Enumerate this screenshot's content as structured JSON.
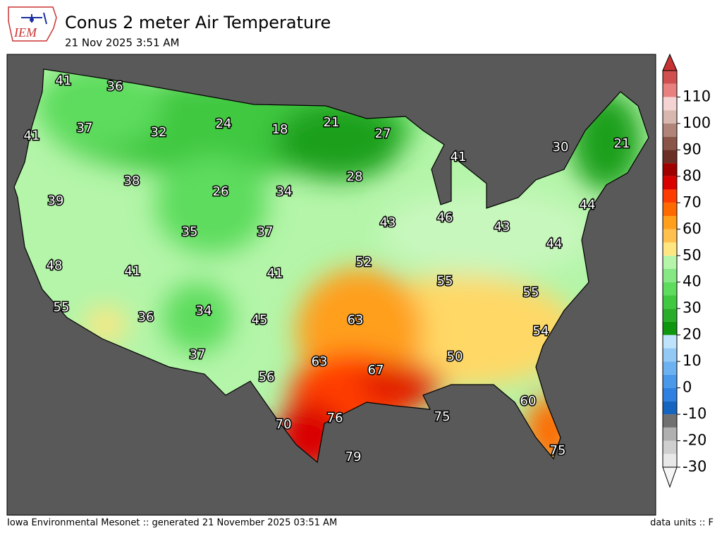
{
  "header": {
    "logo": "IEM",
    "title": "Conus 2 meter Air Temperature",
    "subtitle": "21 Nov 2025 3:51 AM"
  },
  "map": {
    "labels": [
      41,
      36,
      41,
      37,
      32,
      24,
      18,
      21,
      27,
      30,
      21,
      41,
      38,
      26,
      34,
      28,
      39,
      35,
      37,
      43,
      46,
      43,
      44,
      44,
      48,
      41,
      41,
      52,
      55,
      55,
      55,
      36,
      34,
      45,
      63,
      54,
      50,
      37,
      63,
      67,
      56,
      60,
      70,
      76,
      75,
      75,
      79
    ]
  },
  "colorbar": {
    "lim": [
      -30,
      120
    ],
    "ticks": [
      -30,
      -20,
      -10,
      0,
      10,
      20,
      30,
      40,
      50,
      60,
      70,
      80,
      90,
      100,
      110
    ],
    "colors": [
      "#e8e8e8",
      "#cfcfcf",
      "#b0b0b0",
      "#707070",
      "#1565c0",
      "#2f80e0",
      "#4a98ea",
      "#6cb1f0",
      "#93c9f5",
      "#bfe3fa",
      "#0f960f",
      "#2aae2a",
      "#40c840",
      "#5ddc5d",
      "#85e885",
      "#b4f5a9",
      "#ffe680",
      "#ffc04d",
      "#ff9f1a",
      "#ff6a00",
      "#ff3c00",
      "#d90000",
      "#a00000",
      "#6b2f26",
      "#8a5548",
      "#b08478",
      "#d8b8ae",
      "#f5d3d3",
      "#e88080",
      "#d05050"
    ]
  },
  "footer": {
    "left": "Iowa Environmental Mesonet :: generated 21 November 2025 03:51 AM",
    "right": "data units :: F"
  }
}
